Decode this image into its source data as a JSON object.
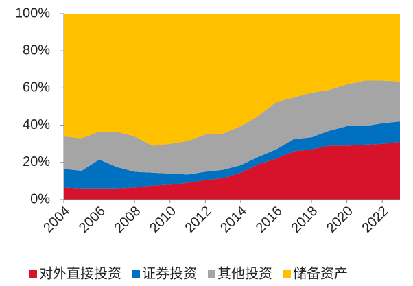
{
  "chart_data": {
    "type": "stacked_area",
    "x": [
      2004,
      2005,
      2006,
      2007,
      2008,
      2009,
      2010,
      2011,
      2012,
      2013,
      2014,
      2015,
      2016,
      2017,
      2018,
      2019,
      2020,
      2021,
      2022,
      2023
    ],
    "series": [
      {
        "name": "对外直接投资",
        "color": "#d7132b",
        "values": [
          6.5,
          6,
          6,
          6,
          6.5,
          7.5,
          8,
          9,
          10.5,
          11.5,
          14.5,
          19,
          22,
          26,
          27,
          29,
          29,
          29.5,
          30,
          31
        ]
      },
      {
        "name": "证券投资",
        "color": "#0070c0",
        "values": [
          10,
          9.5,
          15.5,
          11.5,
          8.5,
          7,
          6,
          4.5,
          4.5,
          4.5,
          4,
          4,
          5,
          6.5,
          6.5,
          8,
          10.5,
          10,
          11,
          11
        ]
      },
      {
        "name": "其他投资",
        "color": "#a5a5a5",
        "values": [
          17.5,
          17.5,
          15,
          19,
          19,
          14.5,
          16,
          18,
          20,
          19.5,
          21,
          22,
          25.5,
          22.5,
          24,
          22,
          22.5,
          24.5,
          23,
          21.5
        ]
      },
      {
        "name": "储备资产",
        "color": "#ffc000",
        "values": [
          66,
          67,
          63.5,
          63.5,
          66,
          71,
          70,
          68.5,
          65,
          64.5,
          60.5,
          55,
          47.5,
          45,
          42.5,
          41,
          38,
          36,
          36,
          36.5
        ]
      }
    ],
    "xlim": [
      2004,
      2023
    ],
    "xticks": [
      2004,
      2006,
      2008,
      2010,
      2012,
      2014,
      2016,
      2018,
      2020,
      2022
    ],
    "ylim": [
      0,
      100
    ],
    "yticks": [
      {
        "value": 0,
        "label": "0%"
      },
      {
        "value": 20,
        "label": "20%"
      },
      {
        "value": 40,
        "label": "40%"
      },
      {
        "value": 60,
        "label": "60%"
      },
      {
        "value": 80,
        "label": "80%"
      },
      {
        "value": 100,
        "label": "100%"
      }
    ],
    "legend": "bottom"
  }
}
